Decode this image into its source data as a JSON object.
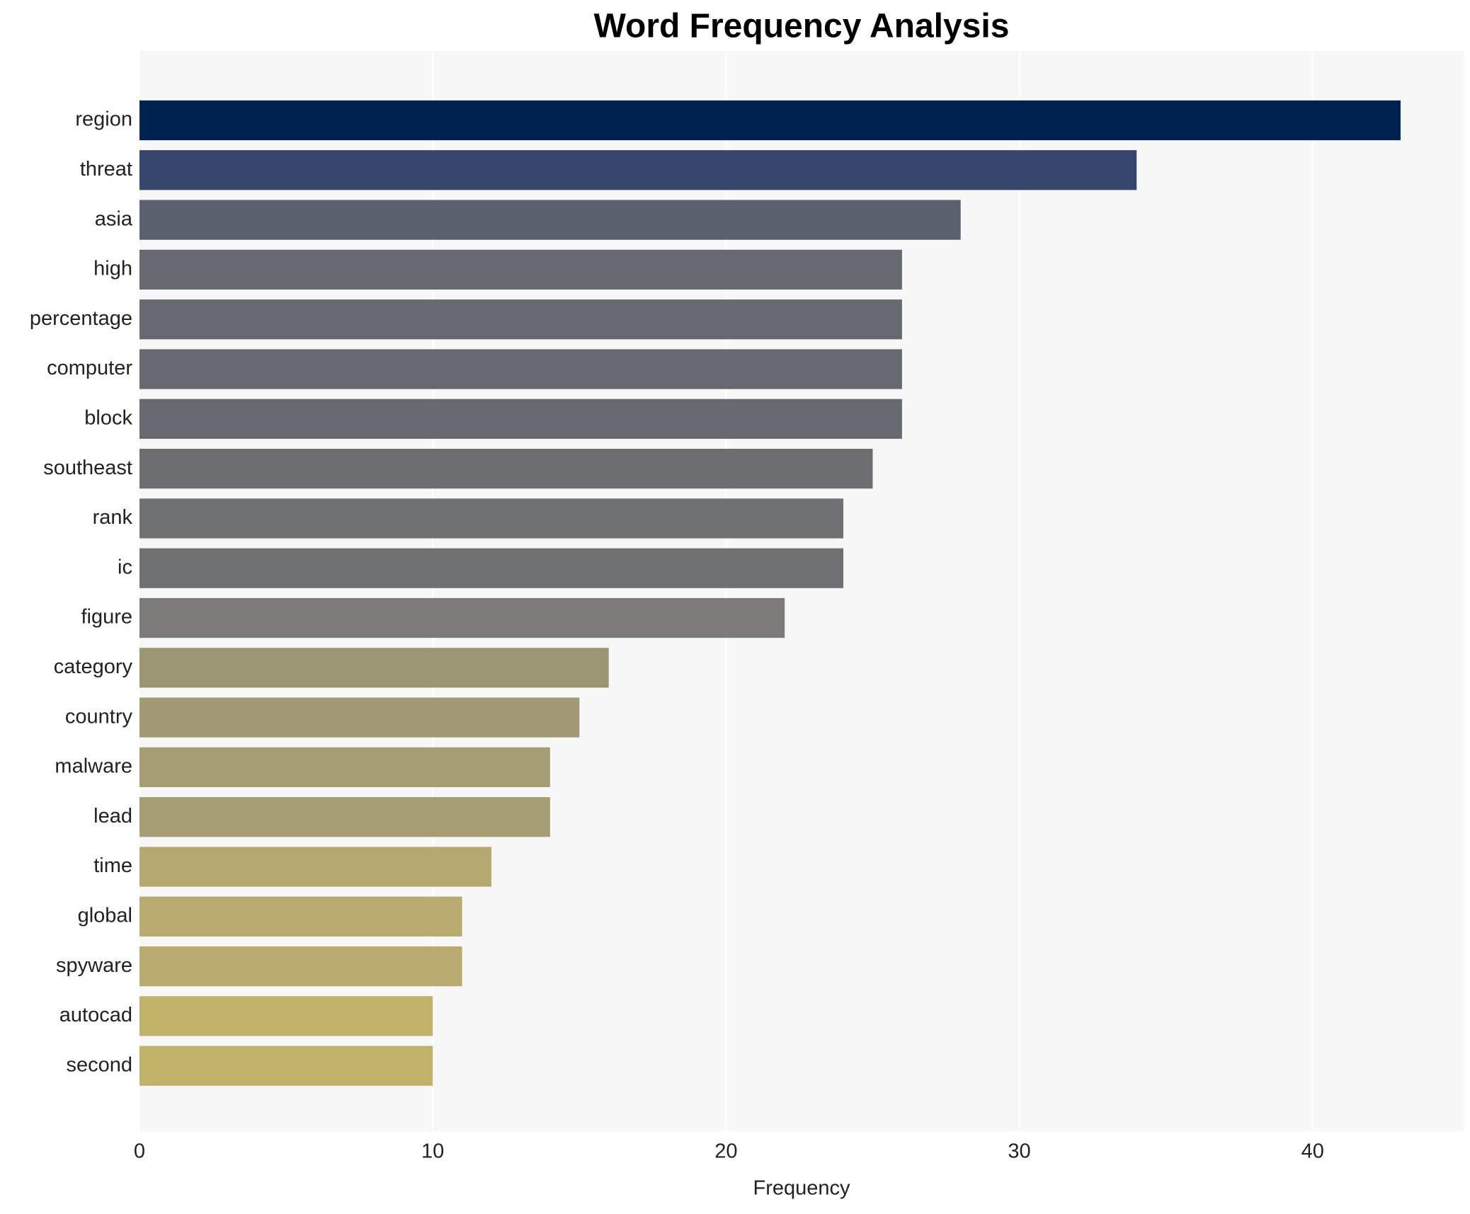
{
  "chart_data": {
    "type": "barh",
    "title": "Word Frequency Analysis",
    "xlabel": "Frequency",
    "categories": [
      "region",
      "threat",
      "asia",
      "high",
      "percentage",
      "computer",
      "block",
      "southeast",
      "rank",
      "ic",
      "figure",
      "category",
      "country",
      "malware",
      "lead",
      "time",
      "global",
      "spyware",
      "autocad",
      "second"
    ],
    "values": [
      43,
      34,
      28,
      26,
      26,
      26,
      26,
      25,
      24,
      24,
      22,
      16,
      15,
      14,
      14,
      12,
      11,
      11,
      10,
      10
    ],
    "colors": [
      "#00224e",
      "#35456c",
      "#5b616f",
      "#666970",
      "#666970",
      "#666970",
      "#666970",
      "#6d6e72",
      "#707173",
      "#707173",
      "#7c7b78",
      "#9c9574",
      "#a29a75",
      "#a69d75",
      "#a69d75",
      "#b5a871",
      "#b9ab70",
      "#b9ab70",
      "#c1b26a",
      "#c1b26a"
    ],
    "xlim": [
      0,
      45.15
    ],
    "xticks": [
      0,
      10,
      20,
      30,
      40
    ],
    "grid": true
  }
}
